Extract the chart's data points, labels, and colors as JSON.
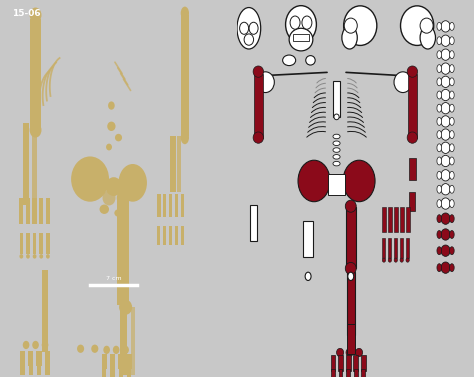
{
  "title_label": "15-06",
  "scale_label": "7 cm",
  "left_bg": "#000000",
  "right_bg": "#ffffff",
  "bone_color": "#c8b06a",
  "red_color": "#8b0a1a",
  "outline_color": "#1a1a1a",
  "gray_color": "#888888",
  "fig_width": 4.74,
  "fig_height": 3.77,
  "dpi": 100
}
